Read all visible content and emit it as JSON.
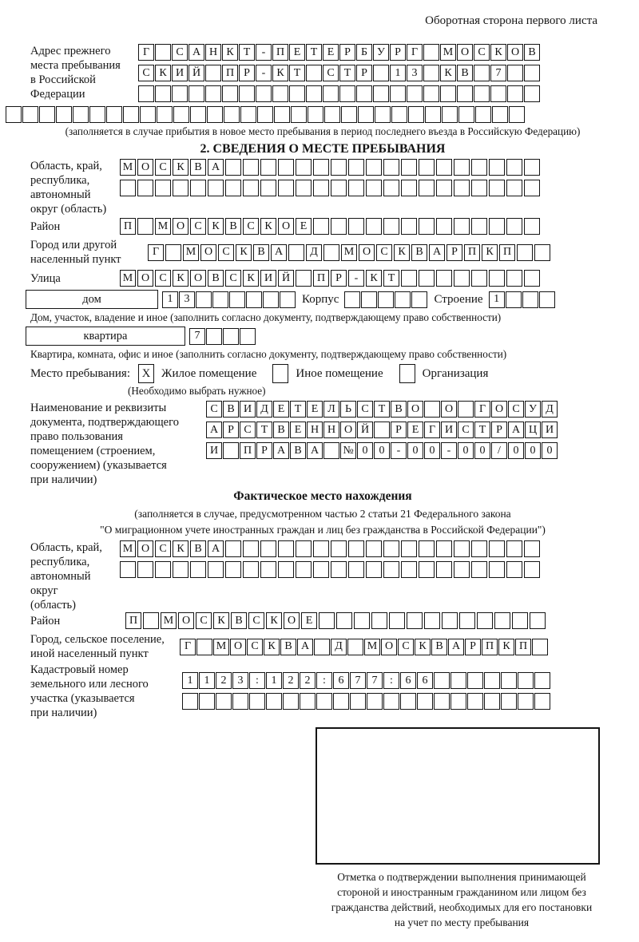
{
  "page": {
    "header_note": "Оборотная сторона первого листа"
  },
  "prev_address": {
    "label_lines": [
      "Адрес прежнего",
      "места пребывания",
      "в Российской",
      "Федерации"
    ],
    "rows": [
      "Г САНКТ-ПЕТЕРБУРГ МОСКОВ",
      "СКИЙ ПР-КТ СТР 13 КВ 7  ",
      "                        "
    ],
    "full_row": "                               ",
    "note": "(заполняется в случае прибытия в новое место пребывания в период последнего въезда в Российскую Федерацию)"
  },
  "section2": {
    "title": "2. СВЕДЕНИЯ О МЕСТЕ ПРЕБЫВАНИЯ",
    "oblast": {
      "label_lines": [
        "Область, край,",
        "республика,",
        "автономный",
        "округ (область)"
      ],
      "rows": [
        "МОСКВА                  ",
        "                        "
      ]
    },
    "raion": {
      "label": "Район",
      "row": "П МОСКВСКОЕ             "
    },
    "gorod": {
      "label_lines": [
        "Город или другой",
        "населенный пункт"
      ],
      "row": "Г МОСКВА Д МОСКВАРПКП  "
    },
    "ulitsa": {
      "label": "Улица",
      "row": "МОСКОВСКИЙ ПР-КТ        "
    },
    "dom_row": {
      "dom_label": "дом",
      "dom_value": "13      ",
      "korpus_label": "Корпус",
      "korpus_value": "     ",
      "stroenie_label": "Строение",
      "stroenie_value": "1   "
    },
    "dom_note": "Дом, участок, владение и иное (заполнить согласно документу, подтверждающему право собственности)",
    "kvartira_row": {
      "label": "квартира",
      "value": "7   "
    },
    "kvartira_note": "Квартира, комната, офис и иное (заполнить согласно документу, подтверждающему право собственности)",
    "mesto": {
      "label": "Место пребывания:",
      "options": [
        {
          "label": "Жилое помещение",
          "mark": "X"
        },
        {
          "label": "Иное помещение",
          "mark": ""
        },
        {
          "label": "Организация",
          "mark": ""
        }
      ],
      "note": "(Необходимо выбрать нужное)"
    },
    "doc": {
      "label_lines": [
        "Наименование и реквизиты",
        "документа, подтверждающего",
        "право пользования",
        "помещением (строением,",
        "сооружением) (указывается",
        "при наличии)"
      ],
      "rows": [
        "СВИДЕТЕЛЬСТВО О ГОСУД",
        "АРСТВЕННОЙ РЕГИСТРАЦИ",
        "И ПРАВА №00-00-00/000"
      ]
    }
  },
  "fact": {
    "title": "Фактическое место нахождения",
    "note_lines": [
      "(заполняется в случае, предусмотренном частью 2 статьи 21 Федерального закона",
      "\"О миграционном учете иностранных граждан и лиц без гражданства в Российской Федерации\")"
    ],
    "oblast": {
      "label_lines": [
        "Область, край,",
        "республика,",
        "автономный округ",
        "(область)"
      ],
      "rows": [
        "МОСКВА                  ",
        "                        "
      ]
    },
    "raion": {
      "label": "Район",
      "row": "П МОСКВСКОЕ             "
    },
    "gorod": {
      "label_lines": [
        "Город, сельское поселение,",
        "иной населенный пункт"
      ],
      "row": "Г МОСКВА Д МОСКВАРПКП "
    },
    "kadastr": {
      "label_lines": [
        "Кадастровый номер",
        "земельного или лесного",
        "участка (указывается",
        "при наличии)"
      ],
      "rows": [
        "1123:122:677:66       ",
        "                      "
      ]
    }
  },
  "stamp": {
    "caption_lines": [
      "Отметка о подтверждении выполнения принимающей",
      "стороной и иностранным гражданином или лицом без",
      "гражданства действий, необходимых для его постановки",
      "на учет по месту пребывания"
    ]
  }
}
